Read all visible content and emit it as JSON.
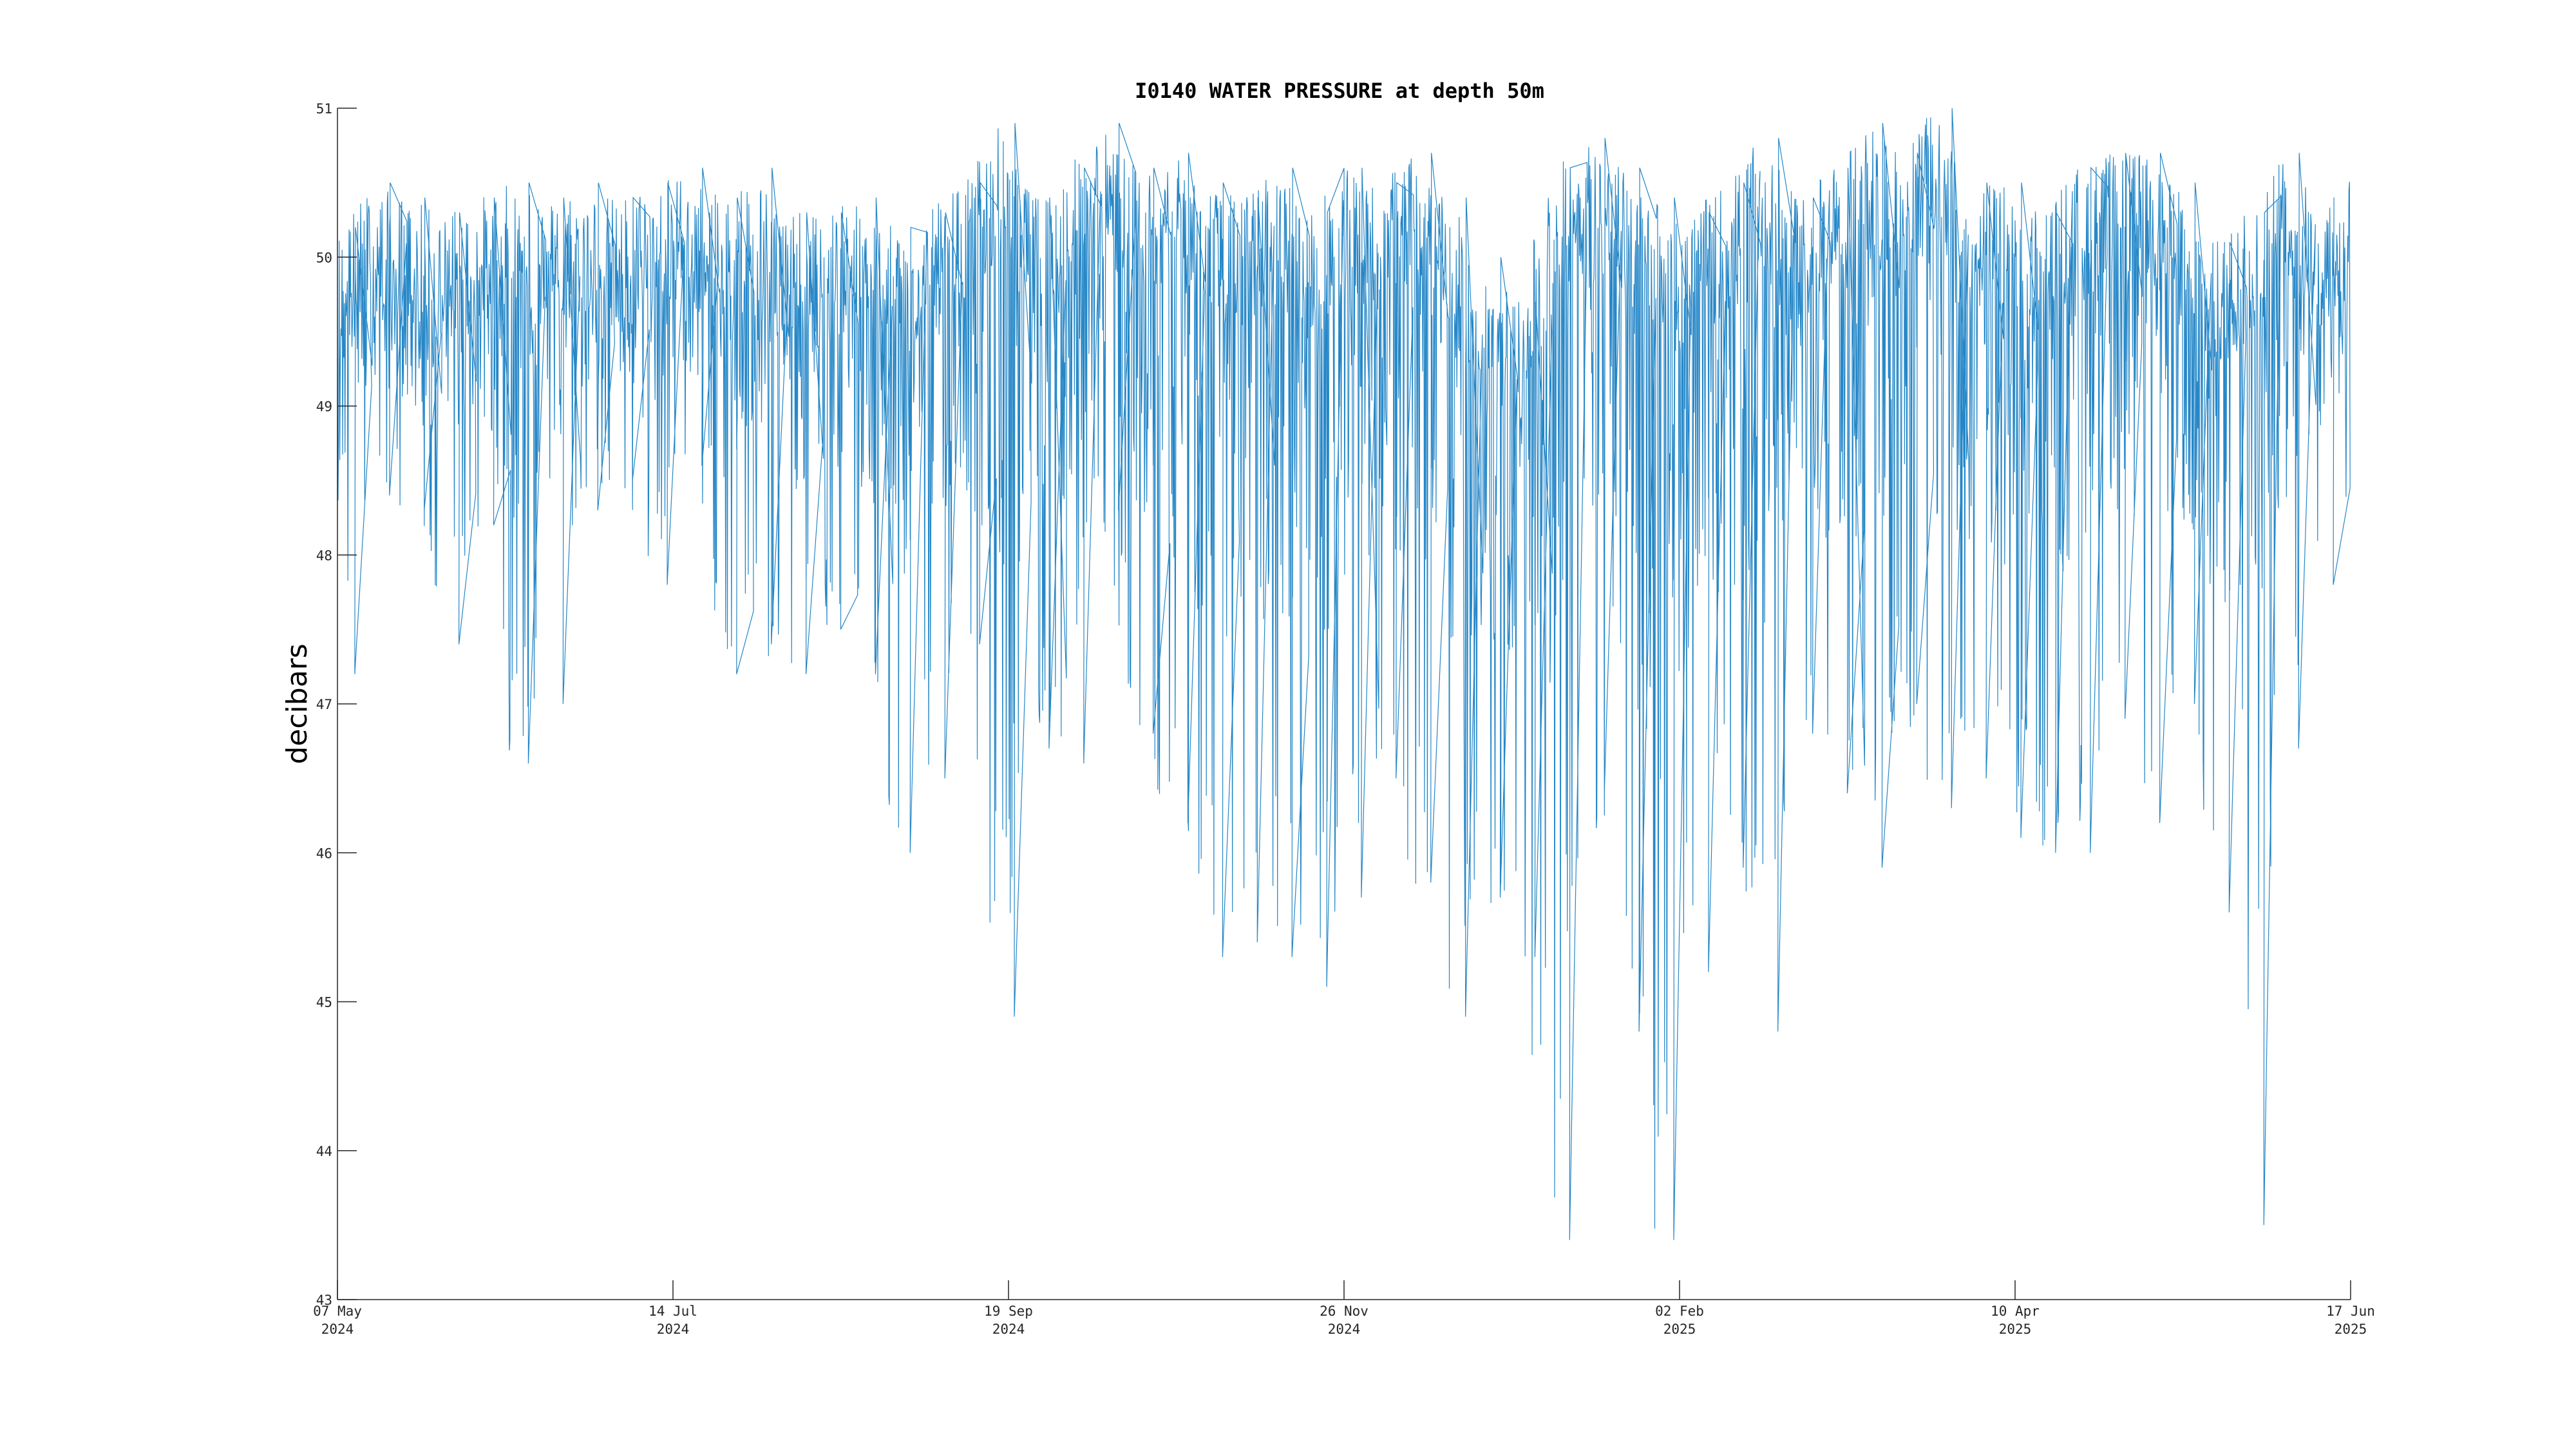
{
  "chart_data": {
    "type": "line",
    "title": "I0140 WATER PRESSURE at depth 50m",
    "xlabel": "",
    "ylabel": "decibars",
    "ylim": [
      43,
      51
    ],
    "xlim": [
      "2024-05-07",
      "2025-06-17"
    ],
    "yticks": [
      "43",
      "44",
      "45",
      "46",
      "47",
      "48",
      "49",
      "50",
      "51"
    ],
    "xticks": [
      {
        "line1": "07 May",
        "line2": "2024"
      },
      {
        "line1": "14 Jul",
        "line2": "2024"
      },
      {
        "line1": "19 Sep",
        "line2": "2024"
      },
      {
        "line1": "26 Nov",
        "line2": "2024"
      },
      {
        "line1": "02 Feb",
        "line2": "2025"
      },
      {
        "line1": "10 Apr",
        "line2": "2025"
      },
      {
        "line1": "17 Jun",
        "line2": "2025"
      }
    ],
    "grid": false,
    "series_color": "#0072BD",
    "series": [
      {
        "x": [
          "2024-05-07",
          "2024-05-14",
          "2024-05-21",
          "2024-05-28",
          "2024-06-04",
          "2024-06-11",
          "2024-06-18",
          "2024-06-25",
          "2024-07-02",
          "2024-07-09",
          "2024-07-16",
          "2024-07-23",
          "2024-07-30",
          "2024-08-06",
          "2024-08-13",
          "2024-08-20",
          "2024-08-27",
          "2024-09-03",
          "2024-09-10",
          "2024-09-17",
          "2024-09-24",
          "2024-10-01",
          "2024-10-08",
          "2024-10-15",
          "2024-10-22",
          "2024-10-29",
          "2024-11-05",
          "2024-11-12",
          "2024-11-19",
          "2024-11-26",
          "2024-12-03",
          "2024-12-10",
          "2024-12-17",
          "2024-12-24",
          "2024-12-31",
          "2025-01-07",
          "2025-01-14",
          "2025-01-21",
          "2025-01-28",
          "2025-02-04",
          "2025-02-11",
          "2025-02-18",
          "2025-02-25",
          "2025-03-04",
          "2025-03-11",
          "2025-03-18",
          "2025-03-25",
          "2025-04-01",
          "2025-04-08",
          "2025-04-15",
          "2025-04-22",
          "2025-04-29",
          "2025-05-06",
          "2025-05-13",
          "2025-05-20",
          "2025-05-27",
          "2025-06-03",
          "2025-06-10",
          "2025-06-17"
        ],
        "high": [
          50.2,
          50.5,
          50.4,
          50.3,
          50.4,
          50.5,
          50.4,
          50.5,
          50.4,
          50.5,
          50.6,
          50.4,
          50.6,
          50.3,
          50.3,
          50.4,
          50.2,
          50.3,
          50.5,
          50.9,
          50.4,
          50.6,
          50.9,
          50.6,
          50.7,
          50.5,
          50.4,
          50.6,
          50.3,
          50.6,
          50.5,
          50.7,
          50.4,
          50.0,
          49.7,
          50.6,
          50.8,
          50.6,
          50.4,
          50.3,
          50.5,
          50.8,
          50.4,
          50.6,
          50.9,
          50.7,
          51.0,
          50.5,
          50.5,
          50.3,
          50.6,
          50.7,
          50.7,
          50.5,
          50.1,
          50.3,
          50.7,
          50.4,
          50.6
        ],
        "low": [
          47.2,
          48.4,
          48.3,
          47.4,
          48.2,
          46.6,
          47.0,
          48.3,
          48.5,
          47.8,
          48.6,
          47.2,
          47.4,
          47.2,
          47.5,
          47.2,
          46.0,
          46.5,
          47.4,
          44.9,
          46.7,
          46.6,
          48.3,
          46.8,
          46.2,
          45.3,
          45.4,
          45.3,
          45.1,
          45.7,
          46.5,
          45.8,
          44.9,
          45.7,
          45.3,
          43.4,
          46.4,
          44.8,
          43.4,
          45.2,
          45.9,
          44.8,
          46.8,
          46.4,
          45.9,
          47.0,
          46.3,
          46.5,
          46.1,
          46.0,
          46.0,
          46.9,
          46.2,
          47.0,
          45.6,
          43.5,
          46.7,
          47.8,
          48.4
        ]
      }
    ]
  }
}
